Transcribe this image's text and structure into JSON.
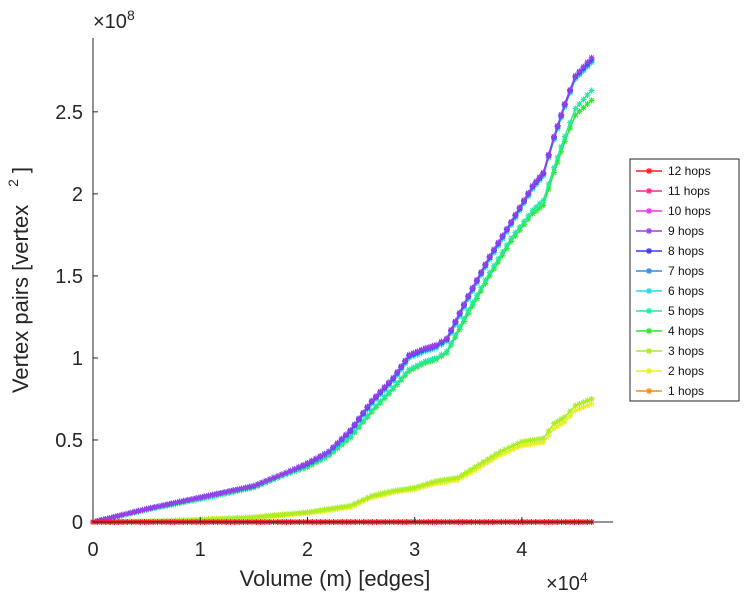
{
  "chart_data": {
    "type": "line",
    "title": "",
    "xlabel": "Volume (m) [edges]",
    "ylabel": "Vertex pairs [vertex",
    "ylabel_sup": "2",
    "ylabel_close": "]",
    "x_exponent_base": "×10",
    "x_exponent_power": "4",
    "y_exponent_base": "×10",
    "y_exponent_power": "8",
    "xlim": [
      0,
      4.85
    ],
    "ylim": [
      0,
      2.95
    ],
    "xticks": [
      0,
      1,
      2,
      3,
      4
    ],
    "xtick_labels": [
      "0",
      "1",
      "2",
      "3",
      "4"
    ],
    "yticks": [
      0,
      0.5,
      1,
      1.5,
      2,
      2.5
    ],
    "ytick_labels": [
      "0",
      "0.5",
      "1",
      "1.5",
      "2",
      "2.5"
    ],
    "legend_position": "right",
    "series": [
      {
        "name": "12 hops",
        "color": "#ff1a1a",
        "x": [
          0,
          4.65
        ],
        "values": [
          0,
          0
        ]
      },
      {
        "name": "11 hops",
        "color": "#ff2a8a",
        "x": [
          0,
          4.65
        ],
        "values": [
          0,
          0
        ]
      },
      {
        "name": "10 hops",
        "color": "#ee33ee",
        "x": [
          0,
          4.65
        ],
        "values": [
          0,
          0
        ]
      },
      {
        "name": "9 hops",
        "color": "#9a3ee8",
        "x": [
          0,
          0.5,
          1.0,
          1.5,
          1.8,
          2.0,
          2.2,
          2.4,
          2.6,
          2.8,
          2.95,
          3.1,
          3.2,
          3.3,
          3.5,
          3.7,
          3.9,
          4.1,
          4.2,
          4.3,
          4.4,
          4.5,
          4.65
        ],
        "values": [
          0,
          0.08,
          0.15,
          0.22,
          0.3,
          0.36,
          0.43,
          0.56,
          0.74,
          0.88,
          1.02,
          1.06,
          1.08,
          1.12,
          1.38,
          1.62,
          1.83,
          2.05,
          2.13,
          2.35,
          2.55,
          2.72,
          2.83
        ]
      },
      {
        "name": "8 hops",
        "color": "#3a3aee",
        "x": [
          0,
          0.5,
          1.0,
          1.5,
          1.8,
          2.0,
          2.2,
          2.4,
          2.6,
          2.8,
          2.95,
          3.1,
          3.2,
          3.3,
          3.5,
          3.7,
          3.9,
          4.1,
          4.2,
          4.3,
          4.4,
          4.5,
          4.65
        ],
        "values": [
          0,
          0.08,
          0.15,
          0.22,
          0.3,
          0.355,
          0.43,
          0.555,
          0.735,
          0.875,
          1.015,
          1.055,
          1.075,
          1.115,
          1.375,
          1.615,
          1.825,
          2.045,
          2.125,
          2.345,
          2.545,
          2.715,
          2.82
        ]
      },
      {
        "name": "7 hops",
        "color": "#2c8ef0",
        "x": [
          0,
          0.5,
          1.0,
          1.5,
          1.8,
          2.0,
          2.2,
          2.4,
          2.6,
          2.8,
          2.95,
          3.1,
          3.2,
          3.3,
          3.5,
          3.7,
          3.9,
          4.1,
          4.2,
          4.3,
          4.4,
          4.5,
          4.65
        ],
        "values": [
          0,
          0.08,
          0.15,
          0.22,
          0.3,
          0.35,
          0.425,
          0.55,
          0.73,
          0.87,
          1.01,
          1.05,
          1.07,
          1.11,
          1.37,
          1.61,
          1.82,
          2.04,
          2.12,
          2.34,
          2.54,
          2.71,
          2.81
        ]
      },
      {
        "name": "6 hops",
        "color": "#22dcee",
        "x": [
          0,
          0.5,
          1.0,
          1.5,
          1.8,
          2.0,
          2.2,
          2.4,
          2.6,
          2.8,
          2.95,
          3.1,
          3.2,
          3.3,
          3.5,
          3.7,
          3.9,
          4.1,
          4.2,
          4.3,
          4.4,
          4.5,
          4.65
        ],
        "values": [
          0,
          0.08,
          0.15,
          0.22,
          0.3,
          0.35,
          0.42,
          0.545,
          0.72,
          0.86,
          1.0,
          1.04,
          1.06,
          1.1,
          1.36,
          1.6,
          1.81,
          2.03,
          2.11,
          2.33,
          2.53,
          2.7,
          2.8
        ]
      },
      {
        "name": "5 hops",
        "color": "#22e8a0",
        "x": [
          0,
          0.5,
          1.0,
          1.5,
          1.8,
          2.0,
          2.2,
          2.4,
          2.6,
          2.8,
          2.95,
          3.1,
          3.2,
          3.3,
          3.5,
          3.7,
          3.9,
          4.1,
          4.2,
          4.3,
          4.4,
          4.5,
          4.65
        ],
        "values": [
          0,
          0.075,
          0.14,
          0.21,
          0.29,
          0.34,
          0.41,
          0.52,
          0.68,
          0.82,
          0.93,
          0.98,
          1.0,
          1.04,
          1.29,
          1.52,
          1.73,
          1.9,
          1.96,
          2.16,
          2.35,
          2.52,
          2.63
        ]
      },
      {
        "name": "4 hops",
        "color": "#2ee82e",
        "x": [
          0,
          0.5,
          1.0,
          1.5,
          1.8,
          2.0,
          2.2,
          2.4,
          2.6,
          2.8,
          2.95,
          3.1,
          3.2,
          3.3,
          3.5,
          3.7,
          3.9,
          4.1,
          4.2,
          4.3,
          4.4,
          4.5,
          4.65
        ],
        "values": [
          0,
          0.075,
          0.14,
          0.21,
          0.29,
          0.335,
          0.405,
          0.515,
          0.67,
          0.81,
          0.92,
          0.97,
          0.99,
          1.03,
          1.27,
          1.5,
          1.71,
          1.88,
          1.93,
          2.13,
          2.32,
          2.48,
          2.57
        ]
      },
      {
        "name": "3 hops",
        "color": "#a8ee22",
        "x": [
          0,
          0.5,
          1.0,
          1.5,
          2.0,
          2.4,
          2.6,
          2.8,
          3.0,
          3.2,
          3.4,
          3.6,
          3.8,
          4.0,
          4.2,
          4.3,
          4.4,
          4.5,
          4.65
        ],
        "values": [
          0,
          0.005,
          0.015,
          0.03,
          0.06,
          0.1,
          0.16,
          0.19,
          0.21,
          0.25,
          0.27,
          0.35,
          0.43,
          0.49,
          0.51,
          0.6,
          0.64,
          0.71,
          0.75
        ]
      },
      {
        "name": "2 hops",
        "color": "#eeee22",
        "x": [
          0,
          0.5,
          1.0,
          1.5,
          2.0,
          2.4,
          2.6,
          2.8,
          3.0,
          3.2,
          3.4,
          3.6,
          3.8,
          4.0,
          4.2,
          4.3,
          4.4,
          4.5,
          4.65
        ],
        "values": [
          0,
          0.004,
          0.012,
          0.026,
          0.054,
          0.09,
          0.15,
          0.18,
          0.2,
          0.235,
          0.255,
          0.33,
          0.41,
          0.465,
          0.485,
          0.57,
          0.61,
          0.68,
          0.72
        ]
      },
      {
        "name": "1 hops",
        "color": "#ff8c1a",
        "x": [
          0,
          4.65
        ],
        "values": [
          0,
          0
        ]
      }
    ]
  }
}
